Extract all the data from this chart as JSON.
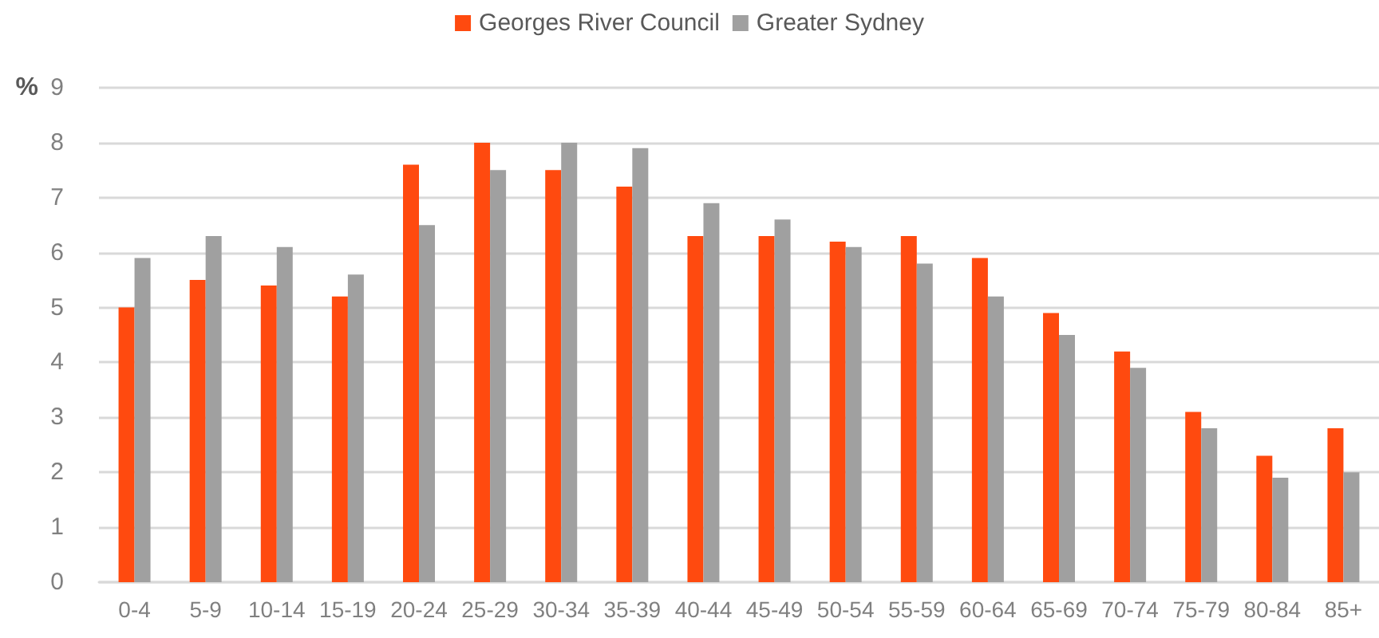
{
  "chart_data": {
    "type": "bar",
    "ylabel": "%",
    "categories": [
      "0-4",
      "5-9",
      "10-14",
      "15-19",
      "20-24",
      "25-29",
      "30-34",
      "35-39",
      "40-44",
      "45-49",
      "50-54",
      "55-59",
      "60-64",
      "65-69",
      "70-74",
      "75-79",
      "80-84",
      "85+"
    ],
    "series": [
      {
        "name": "Georges River Council",
        "color": "#ff4a0f",
        "values": [
          5.0,
          5.5,
          5.4,
          5.2,
          7.6,
          8.0,
          7.5,
          7.2,
          6.3,
          6.3,
          6.2,
          6.3,
          5.9,
          4.9,
          4.2,
          3.1,
          2.3,
          2.8
        ]
      },
      {
        "name": "Greater Sydney",
        "color": "#a0a0a0",
        "values": [
          5.9,
          6.3,
          6.1,
          5.6,
          6.5,
          7.5,
          8.0,
          7.9,
          6.9,
          6.6,
          6.1,
          5.8,
          5.2,
          4.5,
          3.9,
          2.8,
          1.9,
          2.0
        ]
      }
    ],
    "ylim": [
      0,
      9
    ],
    "yticks": [
      0,
      1,
      2,
      3,
      4,
      5,
      6,
      7,
      8,
      9
    ],
    "grid": "y",
    "legend": "top"
  }
}
